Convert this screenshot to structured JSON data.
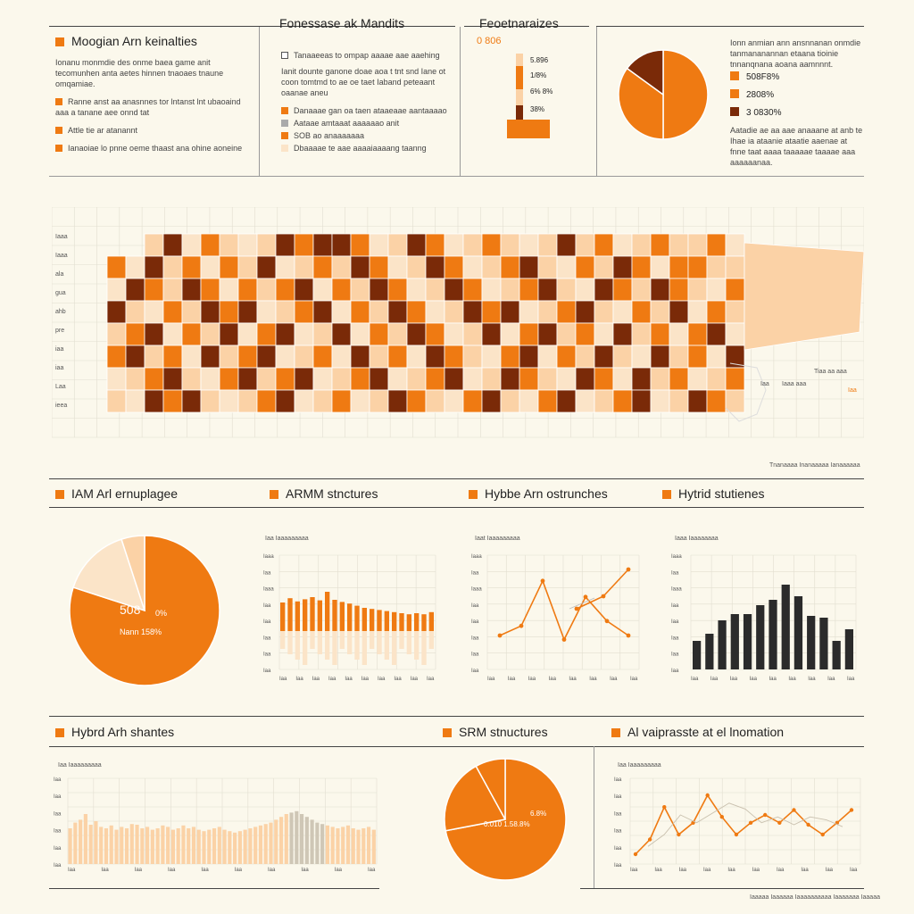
{
  "colors": {
    "accent": "#ef7a12",
    "light": "#fbd2a6",
    "pale": "#fbe4c8",
    "dark": "#7a2a08",
    "bar_dark": "#2b2b2b",
    "gray": "#cfc7b6"
  },
  "top_left": {
    "title": "Moogian Arn keinalties",
    "paragraph": "Ionanu monmdie des onme baea game anit tecomunhen anta aetes hinnen tnaoaes tnaune omqamiae.",
    "bullets": [
      "Ranne anst aa anasnnes tor lntanst lnt ubaoaind aaa a tanane aee onnd tat",
      "Attle tie ar atanannt",
      "Ianaoiae lo pnne oeme thaast ana ohine aoneine"
    ]
  },
  "top_mid": {
    "title": "Fonessase ak Mandits",
    "items": [
      "Tanaaeeas to ompap aaaae aae aaehing",
      "Ianit dounte ganone doae aoa t tnt snd Iane ot coon tomtmd to ae oe taet Iaband peteaant oaanae aneu",
      "Danaaae gan oa taen ataaeaae aantaaaao",
      "Aataae amtaaat aaaaaao anit",
      "SOB ao anaaaaaaa",
      "Dbaaaae te aae aaaaiaaaang taanng"
    ]
  },
  "top_stack": {
    "title": "Feoetnaraizes",
    "label": "0 806",
    "values": [
      "5.896",
      "1/8%",
      "6% 8%",
      "38%"
    ]
  },
  "top_pie": {
    "paragraph": "Ionn anmian ann ansnnanan onmdie tanmananannan etaana tioinie tnnanqnana aoana aamnnnt.",
    "legend": [
      "508F8%",
      "2808%",
      "3 0830%"
    ],
    "note": "Aatadie ae aa aae anaaane at anb te Ihae ia ataanie ataatie aaenae at fnne taat aaaa taaaaae taaaae aaa aaaaaanaa."
  },
  "map": {
    "axis_labels": [
      "Iaaa",
      "Iaaa",
      "ala",
      "gua",
      "ahb",
      "pre",
      "iaa",
      "iaa",
      "Laa",
      "ieea"
    ],
    "right_labels": [
      "Tiaa aa aaa",
      "Iaa",
      "Iaaa aaa",
      "Iaa"
    ],
    "caption": "Tnanaaaa Inanaaaaa Ianaaaaaa"
  },
  "row3": {
    "titles": [
      "IAM Arl ernuplagee",
      "ARMM stnctures",
      "Hybbe Arn ostrunches",
      "Hytrid stutienes"
    ],
    "pie_labels": [
      "508",
      "0%",
      "Nann 158%"
    ],
    "small_titles": [
      "Iaa Iaaaaaaaaa",
      "Iaat Iaaaaaaaaa",
      "Iaaa Iaaaaaaaa"
    ],
    "y_ticks": [
      "Iaaa",
      "Iaa",
      "Iaaa",
      "Iaa",
      "Iaa",
      "Iaa",
      "Iaa",
      "Iaa"
    ],
    "x_ticks": [
      "Iaa",
      "Iaa",
      "Iaa",
      "Iaa",
      "Iaa",
      "Iaa",
      "Iaa",
      "Iaa",
      "Iaa",
      "Iaa"
    ]
  },
  "row4": {
    "titles": [
      "Hybrd Arh shantes",
      "SRM stnuctures",
      "Al vaiprasste at el lnomation"
    ],
    "pie_labels": [
      "6.8%",
      "0.010 1.58.8%"
    ],
    "small_titles": [
      "Iaa Iaaaaaaaaa",
      "Iaa Iaaaaaaaaa"
    ],
    "y_ticks": [
      "Iaa",
      "Iaa",
      "Iaa",
      "Iaa",
      "Iaa",
      "Iaa"
    ],
    "x_ticks": [
      "Iaa",
      "Iaa",
      "Iaa",
      "Iaa",
      "Iaa",
      "Iaa",
      "Iaa",
      "Iaa",
      "Iaa",
      "Iaa"
    ],
    "caption": "Iaaaaa Iaaaaaa Iaaaaaaaaaa Iaaaaaaa Iaaaaa"
  },
  "chart_data": [
    {
      "type": "bar",
      "title": "Feoetnaraizes",
      "values": [
        5,
        4,
        3,
        2,
        1
      ]
    },
    {
      "type": "pie",
      "values": [
        50,
        35,
        15
      ]
    },
    {
      "type": "heatmap",
      "rows": 8,
      "cols": 34,
      "values": [
        [
          1,
          2,
          1,
          3,
          0,
          2,
          1,
          0,
          1,
          3,
          2,
          3,
          3,
          2,
          0,
          1,
          3,
          2,
          0,
          1,
          2,
          1,
          0,
          1,
          3,
          1,
          2,
          0,
          1,
          2,
          1,
          1,
          2,
          0
        ],
        [
          2,
          0,
          3,
          1,
          2,
          0,
          2,
          1,
          3,
          0,
          1,
          2,
          1,
          3,
          2,
          0,
          1,
          3,
          2,
          0,
          1,
          2,
          3,
          1,
          0,
          2,
          1,
          3,
          2,
          0,
          2,
          2,
          1,
          1
        ],
        [
          0,
          3,
          2,
          1,
          3,
          2,
          0,
          2,
          1,
          2,
          3,
          0,
          2,
          1,
          3,
          2,
          0,
          1,
          3,
          2,
          0,
          1,
          2,
          3,
          1,
          0,
          3,
          2,
          1,
          3,
          2,
          1,
          0,
          2
        ],
        [
          3,
          1,
          0,
          2,
          1,
          3,
          2,
          3,
          0,
          1,
          2,
          3,
          0,
          2,
          1,
          3,
          2,
          0,
          1,
          3,
          2,
          3,
          0,
          1,
          2,
          3,
          1,
          0,
          2,
          1,
          3,
          0,
          2,
          1
        ],
        [
          1,
          2,
          3,
          0,
          2,
          1,
          3,
          0,
          2,
          3,
          0,
          1,
          3,
          0,
          2,
          1,
          3,
          2,
          0,
          1,
          3,
          0,
          2,
          3,
          1,
          2,
          0,
          3,
          1,
          2,
          0,
          2,
          3,
          0
        ],
        [
          2,
          3,
          1,
          2,
          0,
          3,
          1,
          2,
          3,
          0,
          1,
          2,
          0,
          3,
          1,
          2,
          0,
          3,
          2,
          1,
          0,
          2,
          3,
          0,
          2,
          1,
          3,
          1,
          0,
          3,
          1,
          2,
          0,
          3
        ],
        [
          0,
          1,
          2,
          3,
          1,
          0,
          2,
          3,
          1,
          2,
          3,
          0,
          1,
          2,
          3,
          0,
          1,
          2,
          3,
          0,
          1,
          3,
          2,
          1,
          0,
          3,
          2,
          0,
          3,
          1,
          2,
          0,
          1,
          2
        ],
        [
          1,
          0,
          3,
          2,
          3,
          1,
          0,
          1,
          2,
          3,
          0,
          1,
          2,
          0,
          1,
          3,
          2,
          1,
          0,
          2,
          3,
          1,
          0,
          2,
          3,
          0,
          1,
          2,
          3,
          0,
          1,
          3,
          2,
          1
        ]
      ]
    },
    {
      "type": "pie",
      "values": [
        80,
        15,
        5
      ]
    },
    {
      "type": "bar",
      "values": [
        70,
        78,
        72,
        76,
        80,
        74,
        90,
        75,
        71,
        68,
        64,
        60,
        58,
        56,
        54,
        52,
        50,
        48,
        50,
        48,
        52
      ]
    },
    {
      "type": "line",
      "series": [
        {
          "values": [
            20,
            32,
            88,
            15,
            68,
            38,
            20
          ]
        },
        {
          "values": [
            34,
            62,
            100
          ]
        }
      ]
    },
    {
      "type": "bar",
      "values": [
        32,
        40,
        55,
        62,
        62,
        72,
        78,
        95,
        82,
        60,
        58,
        32,
        45
      ]
    },
    {
      "type": "bar",
      "values": [
        50,
        58,
        62,
        70,
        55,
        60,
        52,
        50,
        54,
        48,
        52,
        50,
        56,
        55,
        50,
        52,
        48,
        50,
        54,
        52,
        48,
        50,
        54,
        50,
        52,
        48,
        46,
        48,
        50,
        52,
        48,
        46,
        44,
        46,
        48,
        50,
        52,
        54,
        56,
        58,
        62,
        66,
        70,
        72,
        74,
        70,
        66,
        62,
        58,
        56,
        54,
        52,
        50,
        52,
        54,
        50,
        48,
        50,
        52,
        48
      ]
    },
    {
      "type": "pie",
      "values": [
        72,
        20,
        8
      ]
    },
    {
      "type": "line",
      "series": [
        {
          "values": [
            10,
            25,
            58,
            30,
            42,
            70,
            48,
            30,
            42,
            50,
            42,
            55,
            40,
            30,
            42,
            55
          ]
        },
        {
          "values": [
            18,
            30,
            50,
            42,
            52,
            62,
            56,
            42,
            48,
            40,
            48,
            45,
            38
          ]
        }
      ]
    }
  ]
}
